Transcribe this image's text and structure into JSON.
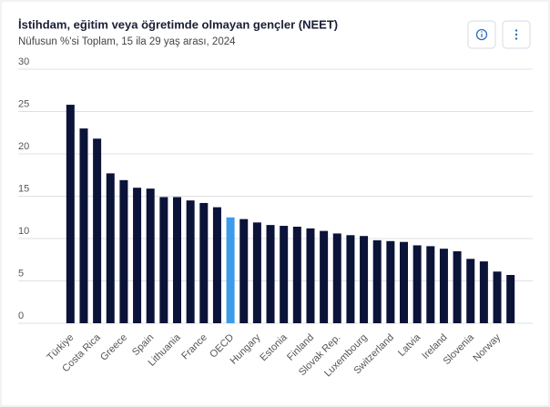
{
  "chart_data": {
    "type": "bar",
    "title": "İstihdam, eğitim veya öğretimde olmayan gençler (NEET)",
    "subtitle": "Nüfusun %'si Toplam, 15 ila 29 yaş arası, 2024",
    "categories": [
      "Türkiye",
      null,
      "Costa Rica",
      null,
      "Greece",
      null,
      "Spain",
      null,
      "Lithuania",
      null,
      "France",
      null,
      "OECD",
      null,
      "Hungary",
      null,
      "Estonia",
      null,
      "Finland",
      null,
      "Slovak Rep.",
      null,
      "Luxembourg",
      null,
      "Switzerland",
      null,
      "Latvia",
      null,
      "Ireland",
      null,
      "Slovenia",
      null,
      "Norway",
      null
    ],
    "values": [
      25.8,
      23.0,
      21.8,
      17.7,
      16.9,
      16.0,
      15.9,
      14.9,
      14.9,
      14.5,
      14.2,
      13.7,
      12.5,
      12.3,
      11.9,
      11.6,
      11.5,
      11.4,
      11.2,
      10.9,
      10.6,
      10.4,
      10.3,
      9.8,
      9.7,
      9.6,
      9.2,
      9.1,
      8.8,
      8.5,
      7.6,
      7.3,
      6.1,
      5.7
    ],
    "colors": [
      "#0b1339",
      "#0b1339",
      "#0b1339",
      "#0b1339",
      "#0b1339",
      "#0b1339",
      "#0b1339",
      "#0b1339",
      "#0b1339",
      "#0b1339",
      "#0b1339",
      "#0b1339",
      "#3d9be9",
      "#0b1339",
      "#0b1339",
      "#0b1339",
      "#0b1339",
      "#0b1339",
      "#0b1339",
      "#0b1339",
      "#0b1339",
      "#0b1339",
      "#0b1339",
      "#0b1339",
      "#0b1339",
      "#0b1339",
      "#0b1339",
      "#0b1339",
      "#0b1339",
      "#0b1339",
      "#0b1339",
      "#0b1339",
      "#0b1339",
      "#0b1339"
    ],
    "ylim": [
      0,
      30
    ],
    "yticks": [
      0,
      5,
      10,
      15,
      20,
      25,
      30
    ],
    "grid": true
  }
}
